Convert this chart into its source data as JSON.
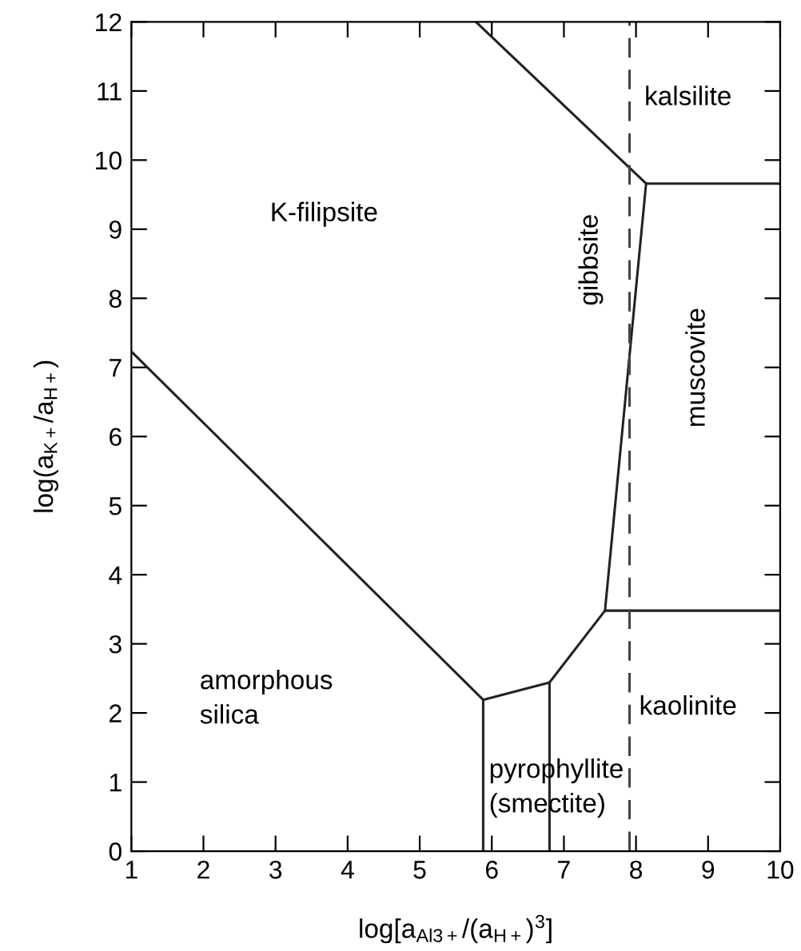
{
  "chart_data": {
    "type": "line",
    "xlabel": "log[a$_{Al3+}$/(a$_{H+}$)$^{3}$]",
    "ylabel": "log(a$_{K+}$/a$_{H+}$)",
    "xlim": [
      1,
      10
    ],
    "ylim": [
      0,
      12
    ],
    "xticks": [
      1,
      2,
      3,
      4,
      5,
      6,
      7,
      8,
      9,
      10
    ],
    "yticks": [
      0,
      1,
      2,
      3,
      4,
      5,
      6,
      7,
      8,
      9,
      10,
      11,
      12
    ],
    "grid": false,
    "marker": "none",
    "series": [
      {
        "color": "#222222",
        "line_style": "solid",
        "x": [
          5.78,
          8.14,
          10
        ],
        "values": [
          12,
          9.66,
          9.66
        ]
      },
      {
        "color": "#222222",
        "line_style": "solid",
        "x": [
          8.14,
          7.57,
          10
        ],
        "values": [
          9.66,
          3.48,
          3.48
        ]
      },
      {
        "color": "#222222",
        "line_style": "solid",
        "x": [
          1,
          5.88,
          6.8,
          7.57
        ],
        "values": [
          7.23,
          2.19,
          2.44,
          3.48
        ]
      },
      {
        "color": "#222222",
        "line_style": "solid",
        "x": [
          5.88,
          5.88
        ],
        "values": [
          0,
          2.19
        ]
      },
      {
        "color": "#222222",
        "line_style": "solid",
        "x": [
          6.8,
          6.8
        ],
        "values": [
          0,
          2.44
        ]
      },
      {
        "color": "#444444",
        "line_style": "dashed",
        "x": [
          7.91,
          7.91
        ],
        "values": [
          0,
          12
        ]
      }
    ],
    "annotations": [
      "K-filipsite",
      "kalsilite",
      "gibbsite",
      "muscovite",
      "amorphous\nsilica",
      "pyrophyllite\n(smectite)",
      "kaolinite"
    ]
  }
}
